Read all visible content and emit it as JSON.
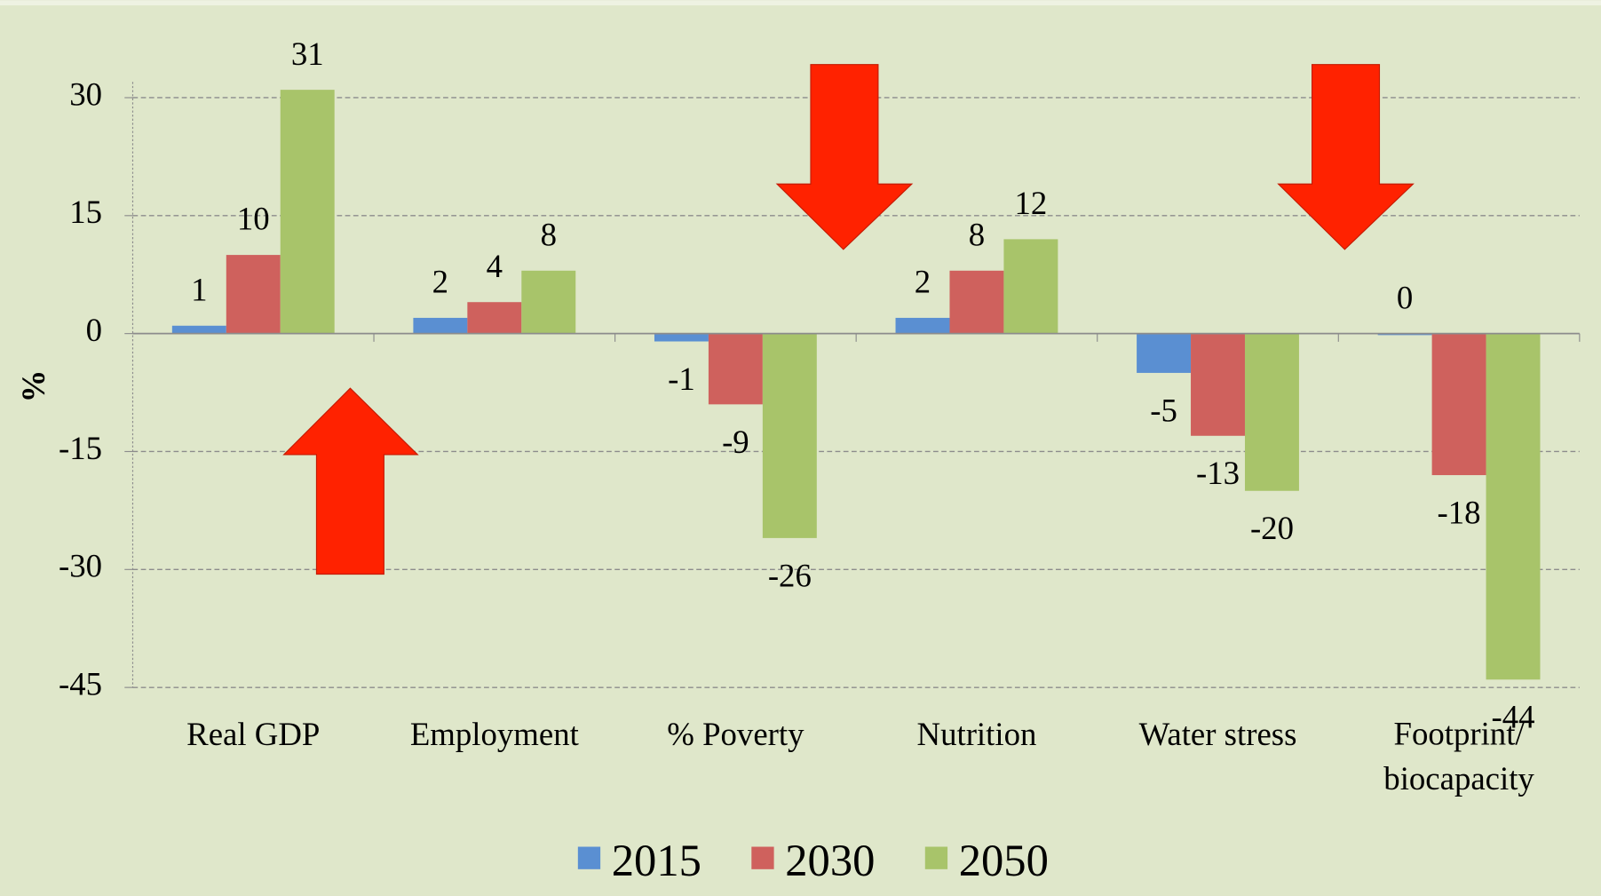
{
  "chart_data": {
    "type": "bar",
    "y_label": "%",
    "categories": [
      "Real GDP",
      "Employment",
      "% Poverty",
      "Nutrition",
      "Water stress",
      "Footprint/\nbiocapacity"
    ],
    "series": [
      {
        "name": "2015",
        "color": "#5a8fd2",
        "values": [
          1,
          2,
          -1,
          2,
          -5,
          0
        ]
      },
      {
        "name": "2030",
        "color": "#cf615d",
        "values": [
          10,
          4,
          -9,
          8,
          -13,
          -18
        ]
      },
      {
        "name": "2050",
        "color": "#a8c46a",
        "values": [
          31,
          8,
          -26,
          12,
          -20,
          -44
        ]
      }
    ],
    "ylim": [
      -45,
      32
    ],
    "yticks": [
      -45,
      -30,
      -15,
      0,
      15,
      30
    ],
    "grid": true,
    "legend": "bottom"
  }
}
